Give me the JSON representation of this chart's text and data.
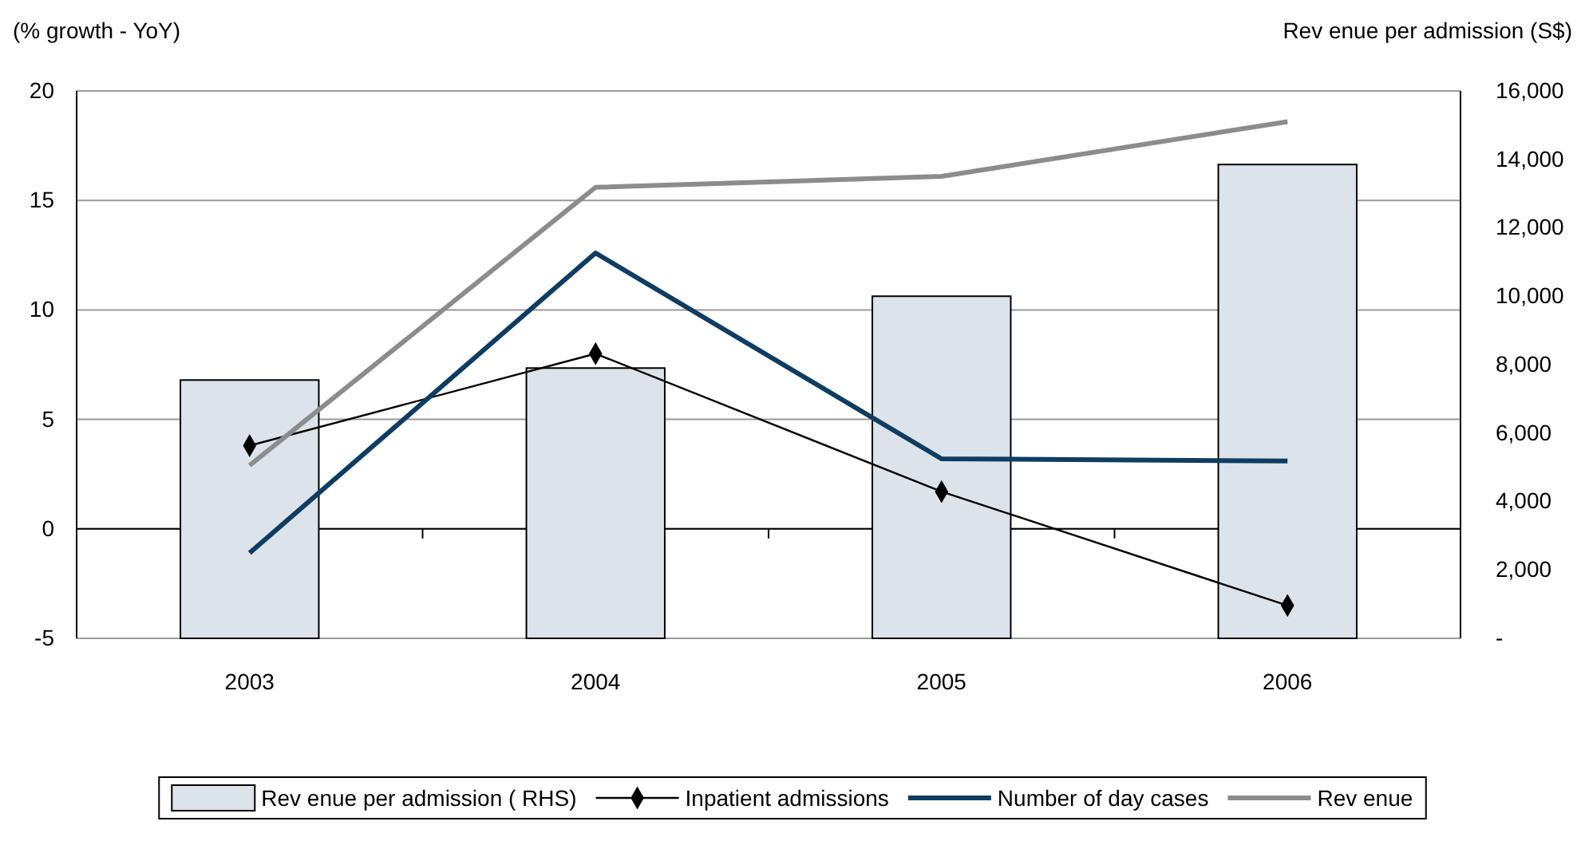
{
  "chart_data": {
    "type": "line",
    "ylabel": "(% growth - YoY)",
    "y2label": "Rev enue per admission (S$)",
    "categories": [
      "2003",
      "2004",
      "2005",
      "2006"
    ],
    "ylim": [
      -5,
      20
    ],
    "yticks": [
      -5,
      0,
      5,
      10,
      15,
      20
    ],
    "y2lim": [
      0,
      16000
    ],
    "y2ticks": [
      {
        "value": 0,
        "label": "-"
      },
      {
        "value": 2000,
        "label": "2,000"
      },
      {
        "value": 4000,
        "label": "4,000"
      },
      {
        "value": 6000,
        "label": "6,000"
      },
      {
        "value": 8000,
        "label": "8,000"
      },
      {
        "value": 10000,
        "label": "10,000"
      },
      {
        "value": 12000,
        "label": "12,000"
      },
      {
        "value": 14000,
        "label": "14,000"
      },
      {
        "value": 16000,
        "label": "16,000"
      }
    ],
    "series": [
      {
        "name": "Rev enue per admission ( RHS)",
        "type": "bar",
        "axis": "y2",
        "color": "#dde3ea",
        "values": [
          7550,
          7900,
          10000,
          13850
        ]
      },
      {
        "name": "Inpatient admissions",
        "color": "#000000",
        "marker": "diamond",
        "values": [
          3.8,
          8.0,
          1.7,
          -3.5
        ]
      },
      {
        "name": "Number of day cases",
        "color": "#0f3c62",
        "marker": "none",
        "values": [
          -1.1,
          12.6,
          3.2,
          3.1
        ]
      },
      {
        "name": "Rev enue",
        "color": "#8c8c8c",
        "marker": "none",
        "values": [
          2.9,
          15.6,
          16.1,
          18.6
        ]
      }
    ],
    "grid": "y",
    "legend": "bottom"
  }
}
